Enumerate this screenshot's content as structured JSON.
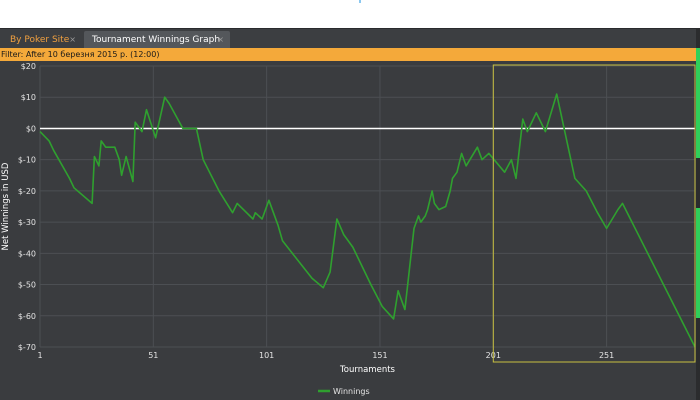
{
  "tabs": [
    {
      "label": "By Poker Site",
      "close": "×",
      "active": false
    },
    {
      "label": "Tournament Winnings Graph",
      "close": "×",
      "active": true
    }
  ],
  "filter": {
    "text": "Filter: After 10 березня 2015 р. (12:00)"
  },
  "colors": {
    "accent": "#f4a93a",
    "series": "#2fa02f",
    "selection": "#c8c040",
    "background": "#3a3c3f"
  },
  "chart_data": {
    "type": "line",
    "xlabel": "Tournaments",
    "ylabel": "Net Winnings in USD",
    "xlim": [
      1,
      290
    ],
    "ylim": [
      -70,
      20
    ],
    "x_ticks": [
      "1",
      "51",
      "101",
      "151",
      "201",
      "251"
    ],
    "y_ticks": [
      "$20",
      "$10",
      "$0",
      "$-10",
      "$-20",
      "$-30",
      "$-40",
      "$-50",
      "$-60",
      "$-70"
    ],
    "grid": true,
    "legend": "bottom-center",
    "selection_range": [
      201,
      290
    ],
    "series": [
      {
        "name": "Winnings",
        "x": [
          1,
          5,
          7,
          14,
          16,
          24,
          25,
          27,
          28,
          30,
          34,
          36,
          37,
          39,
          42,
          43,
          46,
          48,
          52,
          56,
          58,
          64,
          70,
          73,
          80,
          86,
          88,
          95,
          96,
          99,
          102,
          106,
          108,
          121,
          126,
          129,
          132,
          135,
          139,
          147,
          152,
          157,
          159,
          162,
          166,
          168,
          169,
          171,
          172,
          174,
          175,
          177,
          180,
          182,
          183,
          185,
          187,
          189,
          194,
          196,
          199,
          206,
          209,
          211,
          214,
          216,
          220,
          224,
          229,
          237,
          242,
          247,
          251,
          256,
          258,
          290
        ],
        "values": [
          -1,
          -4,
          -7,
          -16,
          -19,
          -24,
          -9,
          -12,
          -4,
          -6,
          -6,
          -10,
          -15,
          -9,
          -17,
          2,
          -1,
          6,
          -3,
          10,
          8,
          0,
          0,
          -10,
          -20,
          -27,
          -24,
          -29,
          -27,
          -29,
          -23,
          -31,
          -36,
          -48,
          -51,
          -46,
          -29,
          -34,
          -38,
          -50,
          -57,
          -61,
          -52,
          -58,
          -32,
          -28,
          -30,
          -28,
          -26,
          -20,
          -24,
          -26,
          -25,
          -20,
          -16,
          -14,
          -8,
          -12,
          -6,
          -10,
          -8,
          -14,
          -10,
          -16,
          3,
          -1,
          5,
          -1,
          11,
          -16,
          -20,
          -27,
          -32,
          -26,
          -24,
          -70
        ]
      }
    ]
  }
}
